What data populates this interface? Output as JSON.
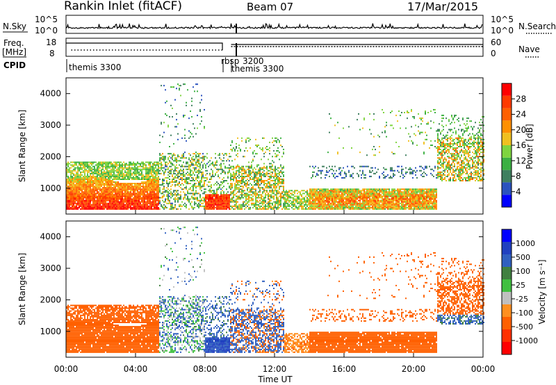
{
  "header": {
    "station": "Rankin Inlet (fitACF)",
    "beam": "Beam 07",
    "date": "17/Mar/2015"
  },
  "noise_panel": {
    "left_label": "N.Sky",
    "right_label": "N.Search",
    "left_ticks": [
      "10^5",
      "10^0"
    ],
    "right_ticks": [
      "10^5",
      "10^0"
    ]
  },
  "freq_panel": {
    "left_label_1": "Freq.",
    "left_label_2": "[MHz]",
    "right_label": "Nave",
    "left_ticks": [
      "18",
      "8"
    ],
    "right_ticks": [
      "60",
      "0"
    ]
  },
  "cpid_panel": {
    "label": "CPID",
    "entries": [
      {
        "text": "themis 3300",
        "t": 0.0
      },
      {
        "text": "rbsp",
        "t": 9.0
      },
      {
        "text": "3200",
        "t": 9.5
      },
      {
        "text": "themis 3300",
        "t": 9.6
      }
    ]
  },
  "colors": {
    "power": [
      "#0000ff",
      "#2a52be",
      "#3f7f5f",
      "#3cb043",
      "#7fd43f",
      "#f0c020",
      "#ff9000",
      "#ff6000",
      "#ff3a00",
      "#ff0000"
    ],
    "velocity": [
      "#ff0000",
      "#ff3000",
      "#ff6000",
      "#ff9020",
      "#c0c0c0",
      "#40c040",
      "#408040",
      "#3060c0",
      "#2040c0",
      "#0000ff"
    ]
  },
  "chart_data": [
    {
      "type": "heatmap",
      "name": "power",
      "ylabel": "Slant Range [km]",
      "ylim": [
        180,
        4500
      ],
      "yticks": [
        1000,
        2000,
        3000,
        4000
      ],
      "xlim": [
        0,
        24
      ],
      "colorbar_label": "Power [dB]",
      "colorbar_ticks": [
        "4",
        "8",
        "12",
        "16",
        "20",
        "24",
        "28"
      ],
      "colorbar_range": [
        0,
        32
      ]
    },
    {
      "type": "heatmap",
      "name": "velocity",
      "ylabel": "Slant Range [km]",
      "ylim": [
        180,
        4500
      ],
      "yticks": [
        1000,
        2000,
        3000,
        4000
      ],
      "xlim": [
        0,
        24
      ],
      "xlabel": "Time UT",
      "xticks": [
        "00:00",
        "04:00",
        "08:00",
        "12:00",
        "16:00",
        "20:00",
        "00:00"
      ],
      "colorbar_label": "Velocity [m s⁻¹]",
      "colorbar_ticks": [
        "-1000",
        "-500",
        "-100",
        "-25",
        "25",
        "100",
        "500",
        "1000"
      ]
    }
  ]
}
